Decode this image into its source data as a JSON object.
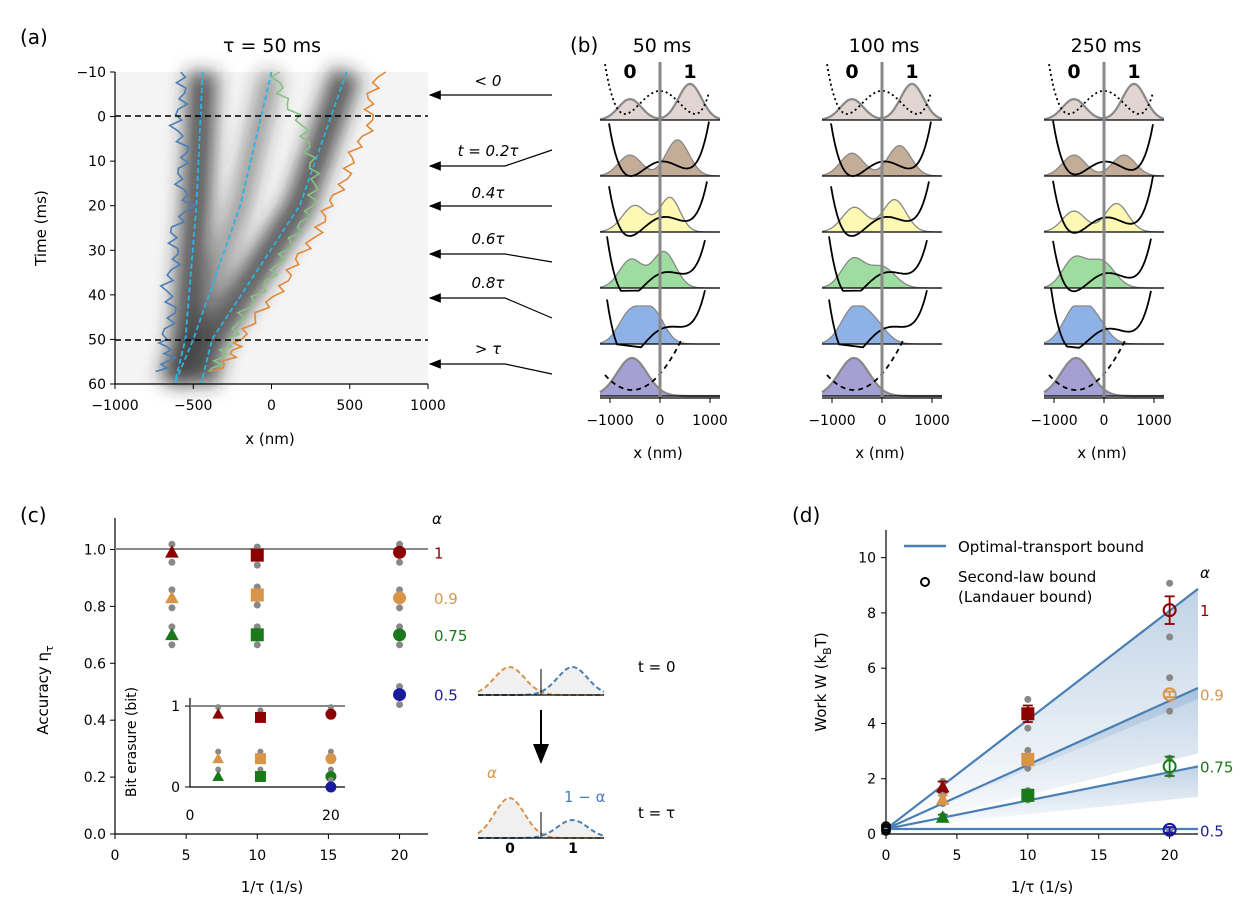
{
  "panels": {
    "a": {
      "label": "(a)",
      "title": "τ = 50 ms",
      "xlabel": "x (nm)",
      "ylabel": "Time (ms)",
      "xticks": [
        "−1000",
        "−500",
        "0",
        "500",
        "1000"
      ],
      "yticks": [
        "−10",
        "0",
        "10",
        "20",
        "30",
        "40",
        "50",
        "60"
      ],
      "stage_labels": [
        "< 0",
        "t = 0.2τ",
        "0.4τ",
        "0.6τ",
        "0.8τ",
        "> τ"
      ]
    },
    "b": {
      "label": "(b)",
      "columns": [
        "50 ms",
        "100 ms",
        "250 ms"
      ],
      "state0": "0",
      "state1": "1",
      "xlabel": "x (nm)",
      "xticks": [
        "−1000",
        "0",
        "1000"
      ],
      "row_colors": [
        "#e0d5d0",
        "#c4ad97",
        "#fdf8b3",
        "#9fdc9f",
        "#8fb2e6",
        "#a5a0d4"
      ]
    },
    "c": {
      "label": "(c)",
      "ylabel": "Accuracy η",
      "ylabel_sub": "τ",
      "xlabel": "1/τ (1/s)",
      "alpha_symbol": "α",
      "xticks": [
        "0",
        "5",
        "10",
        "15",
        "20"
      ],
      "yticks": [
        "0.0",
        "0.2",
        "0.4",
        "0.6",
        "0.8",
        "1.0"
      ],
      "inset": {
        "ylabel": "Bit erasure (bit)",
        "xticks": [
          "0",
          "20"
        ],
        "yticks": [
          "0",
          "1"
        ]
      },
      "schematic": {
        "t0": "t = 0",
        "ttau": "t = τ",
        "alpha": "α",
        "one_minus_alpha": "1 − α",
        "x0": "0",
        "x1": "1"
      }
    },
    "d": {
      "label": "(d)",
      "ylabel": "Work W (k",
      "ylabel_sub": "B",
      "ylabel_end": "T)",
      "xlabel": "1/τ (1/s)",
      "alpha_symbol": "α",
      "legend_line": "Optimal-transport bound",
      "legend_circle_1": "Second-law bound",
      "legend_circle_2": "(Landauer bound)",
      "xticks": [
        "0",
        "5",
        "10",
        "15",
        "20"
      ],
      "yticks": [
        "0",
        "2",
        "4",
        "6",
        "8",
        "10"
      ]
    }
  },
  "colors": {
    "a1": "#8b0000",
    "a09": "#d8954a",
    "a075": "#1a7a1a",
    "a05": "#1a1aa0",
    "bound": "#4a7fb5",
    "gray": "#808080"
  },
  "chart_data": [
    {
      "type": "heatmap",
      "panel": "a",
      "title": "τ = 50 ms",
      "xlabel": "x (nm)",
      "ylabel": "Time (ms)",
      "xlim": [
        -1000,
        1000
      ],
      "ylim": [
        60,
        -10
      ],
      "dashed_lines_y": [
        0,
        50
      ],
      "traces": [
        {
          "name": "blue",
          "x": [
            -580,
            -560,
            -620,
            -540,
            -600,
            -520,
            -640,
            -600,
            -680,
            -620,
            -700,
            -640,
            -740
          ],
          "t": [
            -10,
            -4,
            2,
            8,
            14,
            20,
            26,
            32,
            38,
            44,
            50,
            54,
            58
          ]
        },
        {
          "name": "orange",
          "x": [
            700,
            620,
            640,
            520,
            480,
            360,
            300,
            160,
            80,
            -80,
            -200,
            -260,
            -380
          ],
          "t": [
            -10,
            -4,
            2,
            8,
            14,
            20,
            26,
            32,
            38,
            44,
            50,
            54,
            58
          ]
        },
        {
          "name": "green",
          "x": [
            20,
            80,
            200,
            240,
            280,
            260,
            160,
            60,
            -40,
            -180,
            -260,
            -320,
            -400
          ],
          "t": [
            -10,
            -4,
            2,
            8,
            14,
            20,
            26,
            32,
            38,
            44,
            50,
            54,
            58
          ]
        }
      ],
      "mean_paths": [
        {
          "x": [
            -440,
            -480,
            -550,
            -620
          ],
          "t": [
            -10,
            20,
            50,
            60
          ]
        },
        {
          "x": [
            0,
            -200,
            -500,
            -620
          ],
          "t": [
            -10,
            20,
            50,
            60
          ]
        },
        {
          "x": [
            480,
            180,
            -380,
            -450
          ],
          "t": [
            -10,
            20,
            50,
            60
          ]
        }
      ]
    },
    {
      "type": "area",
      "panel": "b",
      "xlabel": "x (nm)",
      "xlim": [
        -1200,
        1200
      ],
      "columns": [
        "50 ms",
        "100 ms",
        "250 ms"
      ],
      "stages": [
        "< 0",
        "0.2τ",
        "0.4τ",
        "0.6τ",
        "0.8τ",
        "> τ"
      ]
    },
    {
      "type": "scatter",
      "panel": "c",
      "xlabel": "1/τ (1/s)",
      "ylabel": "Accuracy η_τ",
      "xlim": [
        0,
        22
      ],
      "ylim": [
        0,
        1.1
      ],
      "reference_line": 1.0,
      "series": [
        {
          "name": "1",
          "x": [
            4,
            10,
            20
          ],
          "y": [
            0.99,
            0.98,
            0.99
          ]
        },
        {
          "name": "0.9",
          "x": [
            4,
            10,
            20
          ],
          "y": [
            0.83,
            0.84,
            0.83
          ]
        },
        {
          "name": "0.75",
          "x": [
            4,
            10,
            20
          ],
          "y": [
            0.7,
            0.7,
            0.7
          ]
        },
        {
          "name": "0.5",
          "x": [
            20
          ],
          "y": [
            0.49
          ]
        }
      ]
    },
    {
      "type": "scatter",
      "panel": "c-inset",
      "ylabel": "Bit erasure (bit)",
      "xlim": [
        0,
        22
      ],
      "ylim": [
        0,
        1.1
      ],
      "series": [
        {
          "name": "1",
          "x": [
            4,
            10,
            20
          ],
          "y": [
            0.9,
            0.86,
            0.9
          ]
        },
        {
          "name": "0.9",
          "x": [
            4,
            10,
            20
          ],
          "y": [
            0.35,
            0.35,
            0.35
          ]
        },
        {
          "name": "0.75",
          "x": [
            4,
            10,
            20
          ],
          "y": [
            0.13,
            0.13,
            0.13
          ]
        },
        {
          "name": "0.5",
          "x": [
            20
          ],
          "y": [
            0.0
          ]
        }
      ]
    },
    {
      "type": "line",
      "panel": "d",
      "xlabel": "1/τ (1/s)",
      "ylabel": "Work W (k_B T)",
      "xlim": [
        0,
        22
      ],
      "ylim": [
        0,
        11
      ],
      "series": [
        {
          "name": "1",
          "x": [
            4,
            10,
            20
          ],
          "y": [
            1.7,
            4.35,
            8.1
          ],
          "err": [
            0.2,
            0.3,
            0.5
          ],
          "bound_slope": 0.395
        },
        {
          "name": "0.9",
          "x": [
            4,
            10,
            20
          ],
          "y": [
            1.25,
            2.7,
            5.05
          ],
          "err": [
            0.15,
            0.2,
            0.1
          ],
          "bound_slope": 0.232
        },
        {
          "name": "0.75",
          "x": [
            4,
            10,
            20
          ],
          "y": [
            0.6,
            1.4,
            2.45
          ],
          "err": [
            0.1,
            0.2,
            0.35
          ],
          "bound_slope": 0.103
        },
        {
          "name": "0.5",
          "x": [
            20
          ],
          "y": [
            0.15
          ],
          "err": [
            0.1
          ],
          "bound_slope": 0.0
        }
      ],
      "landauer_points": [
        {
          "x": 0,
          "y": 0.28
        },
        {
          "x": 0,
          "y": 0.2
        },
        {
          "x": 0,
          "y": 0.12
        }
      ]
    }
  ]
}
